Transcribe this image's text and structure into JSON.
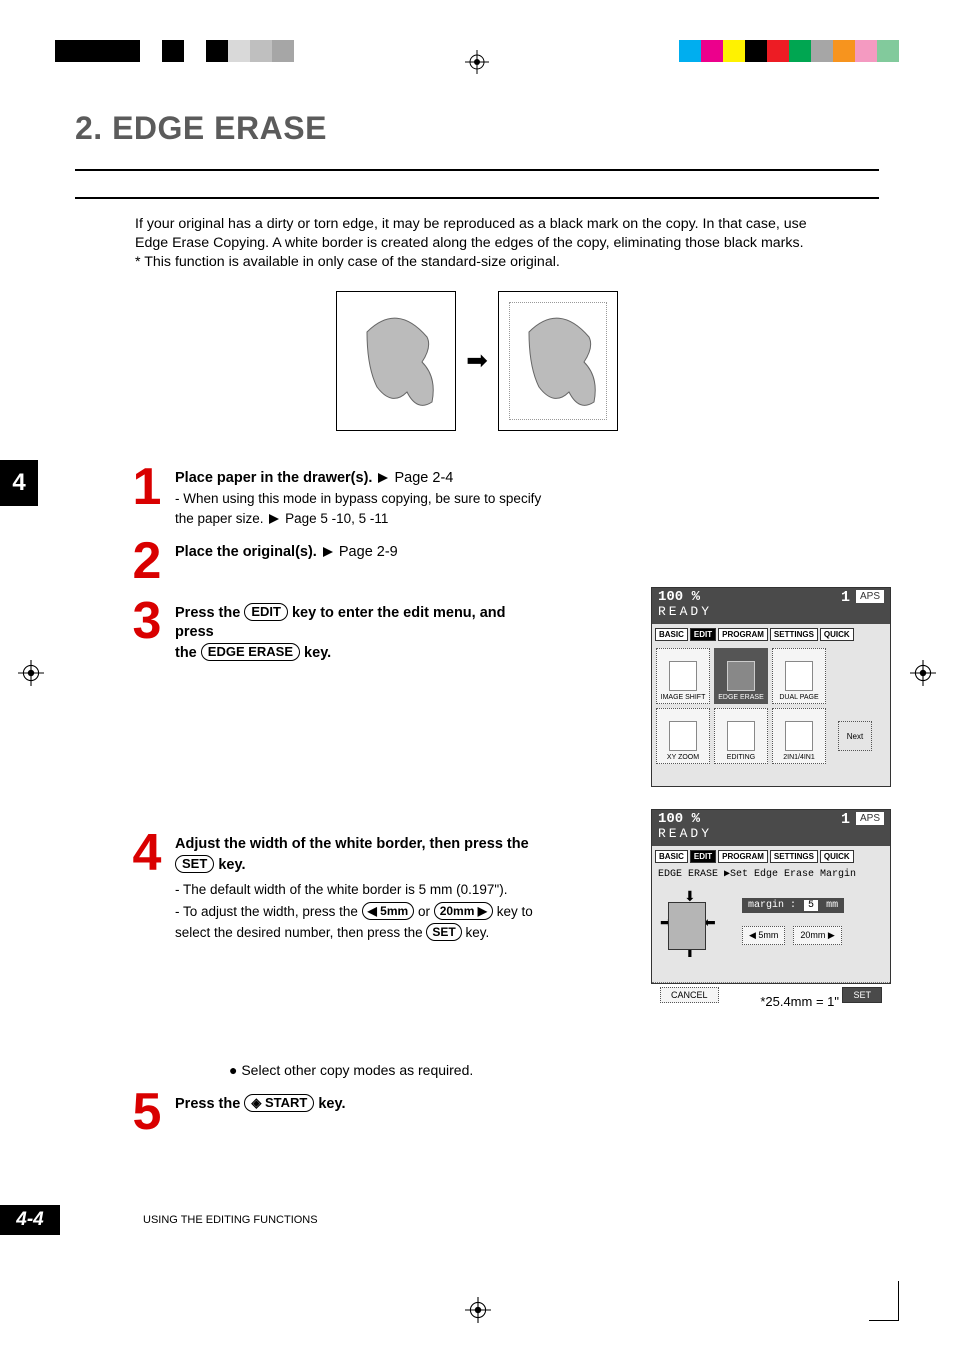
{
  "topbar": {
    "left_alt_colors": [
      "#000000",
      "#ffffff",
      "#000000",
      "#ffffff",
      "#000000",
      "#d9d9d9",
      "#bfbfbf",
      "#a6a6a6"
    ],
    "right_colors": [
      "#00aeef",
      "#ec008c",
      "#fff200",
      "#000000",
      "#ed1c24",
      "#00a651",
      "#a6a6a6",
      "#f7941e",
      "#f49ac1",
      "#82ca9c"
    ]
  },
  "title": "2. EDGE ERASE",
  "intro": {
    "l1": "If your original has a dirty or torn edge, it may be reproduced as a black mark on the copy. In that case, use",
    "l2": "Edge Erase Copying. A white border is created along the edges of the copy, eliminating those black marks.",
    "l3": "* This function is available in only case of the standard-size original."
  },
  "chapter_tab": "4",
  "steps": {
    "s1": {
      "num": "1",
      "head": "Place paper in the drawer(s).",
      "ref": " Page 2-4",
      "sub1": "- When using this mode in bypass copying, be sure to specify",
      "sub2": "  the paper size. ",
      "sub2ref": " Page 5 -10, 5 -11"
    },
    "s2": {
      "num": "2",
      "head": "Place the original(s).",
      "ref": " Page 2-9"
    },
    "s3": {
      "num": "3",
      "head_a": "Press the ",
      "key1": "EDIT",
      "head_b": " key to enter the edit menu, and  press",
      "head_c": "the ",
      "key2": "EDGE ERASE",
      "head_d": " key."
    },
    "s4": {
      "num": "4",
      "head_a": "Adjust the width of the white border, then press the",
      "key1": "SET",
      "head_b": " key.",
      "sub1": "- The default width of the white border is 5 mm (0.197\").",
      "sub2a": "- To adjust the width, press the ",
      "key2": "◀ 5mm",
      "sub2b": " or ",
      "key3": "20mm ▶",
      "sub2c": " key to",
      "sub3a": "  select the desired number, then press the ",
      "key4": "SET",
      "sub3b": " key."
    },
    "s5": {
      "num": "5",
      "head_a": "Press the ",
      "key1": "◈ START",
      "head_b": " key."
    }
  },
  "screen1": {
    "zoom": "100 %",
    "one": "1",
    "aps": "APS",
    "ready": "READY",
    "tabs": [
      "BASIC",
      "EDIT",
      "PROGRAM",
      "SETTINGS",
      "QUICK"
    ],
    "active_tab": 1,
    "buttons_row1": [
      "IMAGE SHIFT",
      "EDGE ERASE",
      "DUAL PAGE"
    ],
    "selected_row1": 1,
    "buttons_row2": [
      "XY ZOOM",
      "EDITING",
      "2IN1/4IN1"
    ],
    "next": "Next"
  },
  "screen2": {
    "zoom": "100 %",
    "one": "1",
    "aps": "APS",
    "ready": "READY",
    "tabs": [
      "BASIC",
      "EDIT",
      "PROGRAM",
      "SETTINGS",
      "QUICK"
    ],
    "active_tab": 1,
    "subtext": "EDGE ERASE  ▶Set Edge Erase Margin",
    "margin_label_a": "margin :",
    "margin_val": "5",
    "margin_label_b": "mm",
    "btn_dec": "◀ 5mm",
    "btn_inc": "20mm ▶",
    "cancel": "CANCEL",
    "set": "SET"
  },
  "caption_under_screen2": "*25.4mm = 1\"",
  "bullet": "● Select other copy modes as required.",
  "footer": {
    "page": "4-4",
    "text": "USING THE EDITING FUNCTIONS"
  }
}
